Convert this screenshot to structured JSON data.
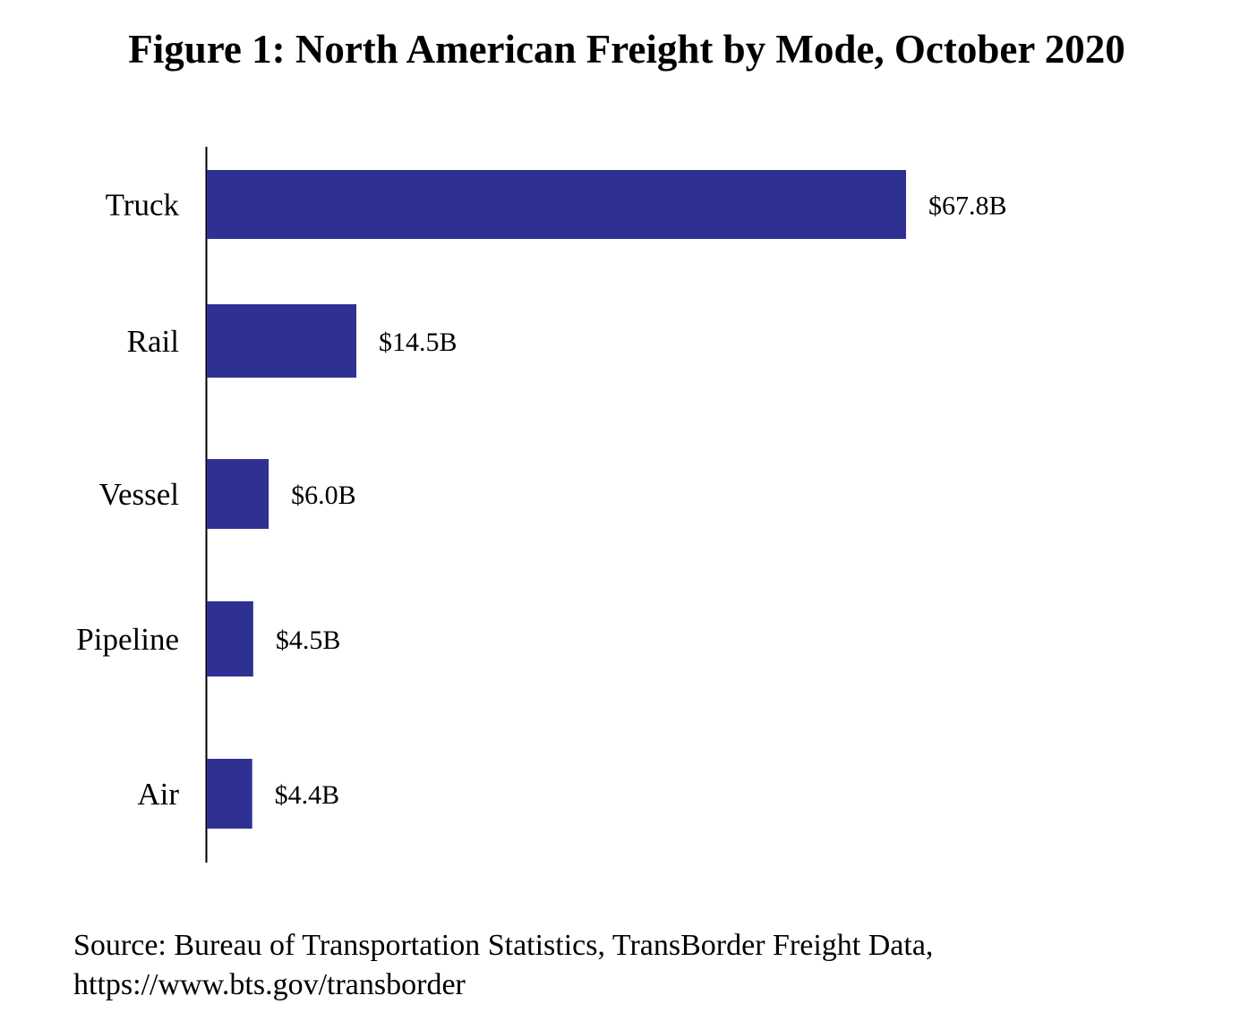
{
  "chart_data": {
    "type": "bar",
    "orientation": "horizontal",
    "title": "Figure 1: North American Freight by Mode, October 2020",
    "categories": [
      "Truck",
      "Rail",
      "Vessel",
      "Pipeline",
      "Air"
    ],
    "values": [
      67.8,
      14.5,
      6.0,
      4.5,
      4.4
    ],
    "value_labels": [
      "$67.8B",
      "$14.5B",
      "$6.0B",
      "$4.5B",
      "$4.4B"
    ],
    "unit": "billion USD",
    "xlabel": "",
    "ylabel": "",
    "xlim": [
      0,
      67.8
    ],
    "grid": false,
    "legend": "none",
    "bar_color": "#2E3192",
    "source_line1": "Source: Bureau of Transportation Statistics, TransBorder Freight Data,",
    "source_line2": "https://www.bts.gov/transborder"
  }
}
